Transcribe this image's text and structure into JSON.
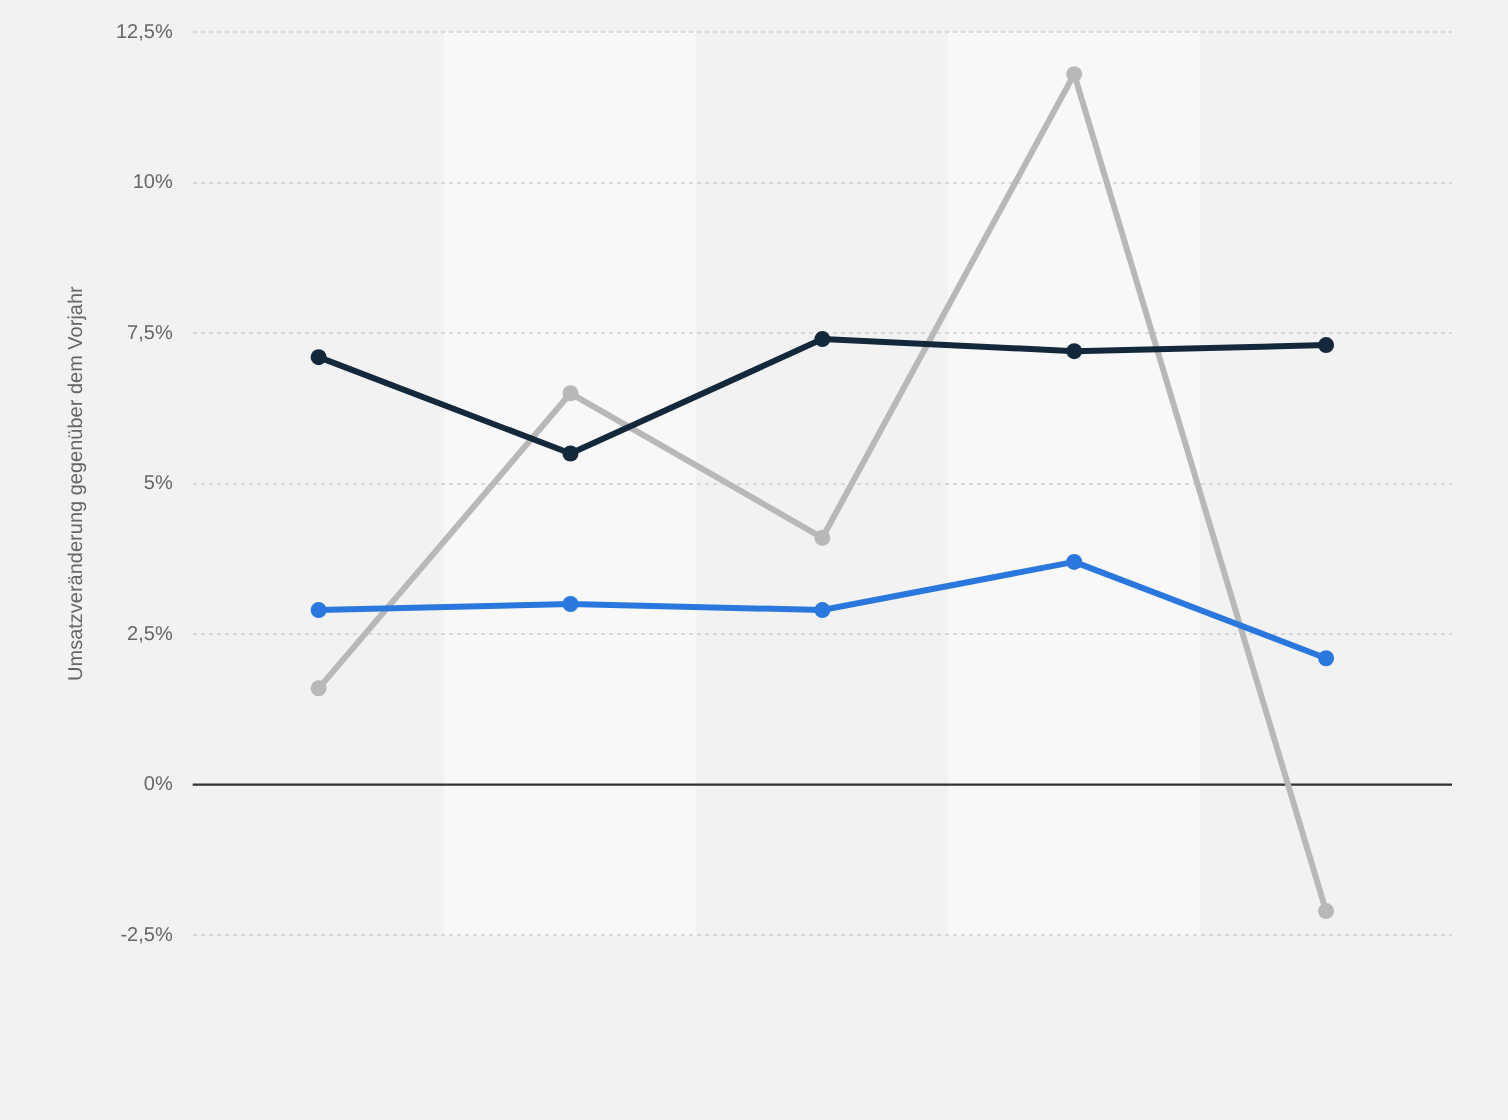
{
  "chart_data": {
    "type": "line",
    "ylabel": "Umsatzveränderung gegenüber dem Vorjahr",
    "categories": [
      null,
      null,
      null,
      null,
      null
    ],
    "series": [
      {
        "color": "#14283c",
        "values": [
          7.1,
          5.5,
          7.4,
          7.2,
          7.3
        ]
      },
      {
        "color": "#2a78de",
        "values": [
          2.9,
          3.0,
          2.9,
          3.7,
          2.1
        ]
      },
      {
        "color": "#b8b8b8",
        "values": [
          1.6,
          6.5,
          4.1,
          11.8,
          -2.1
        ]
      }
    ],
    "ylim": [
      -2.5,
      12.5
    ],
    "yticks": [
      {
        "value": -2.5,
        "label": "-2,5%"
      },
      {
        "value": 0,
        "label": "0%"
      },
      {
        "value": 2.5,
        "label": "2,5%"
      },
      {
        "value": 5,
        "label": "5%"
      },
      {
        "value": 7.5,
        "label": "7,5%"
      },
      {
        "value": 10,
        "label": "10%"
      },
      {
        "value": 12.5,
        "label": "12,5%"
      }
    ],
    "ref_lines": [
      {
        "axis": "y",
        "value": 0,
        "color": "#333333"
      }
    ],
    "grid": "y",
    "legend": false,
    "marker": "circle",
    "line_style": "solid"
  }
}
